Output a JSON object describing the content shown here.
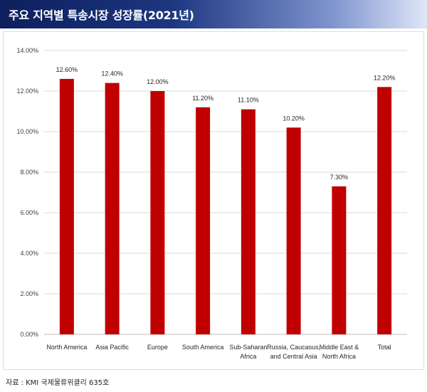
{
  "header": {
    "title": "주요 지역별 특송시장 성장률(2021년)"
  },
  "source": "자료 : KMI 국제물류위클리 635호",
  "colors": {
    "bar": "#c00000",
    "grid": "#d9d9d9",
    "header_dark": "#0d1f5c"
  },
  "chart_data": {
    "type": "bar",
    "title": "",
    "xlabel": "",
    "ylabel": "",
    "ylim": [
      0,
      14
    ],
    "yticks": [
      "0.00%",
      "2.00%",
      "4.00%",
      "6.00%",
      "8.00%",
      "10.00%",
      "12.00%",
      "14.00%"
    ],
    "categories": [
      [
        "North America"
      ],
      [
        "Asia Pacific"
      ],
      [
        "Europe"
      ],
      [
        "South America"
      ],
      [
        "Sub-Saharan",
        "Africa"
      ],
      [
        "Russia, Caucasus,",
        "and Central Asia"
      ],
      [
        "Middle East &",
        "North Africa"
      ],
      [
        "Total"
      ]
    ],
    "values": [
      12.6,
      12.4,
      12.0,
      11.2,
      11.1,
      10.2,
      7.3,
      12.2
    ],
    "data_labels": [
      "12.60%",
      "12.40%",
      "12.00%",
      "11.20%",
      "11.10%",
      "10.20%",
      "7.30%",
      "12.20%"
    ],
    "grid": true,
    "legend": "none"
  }
}
